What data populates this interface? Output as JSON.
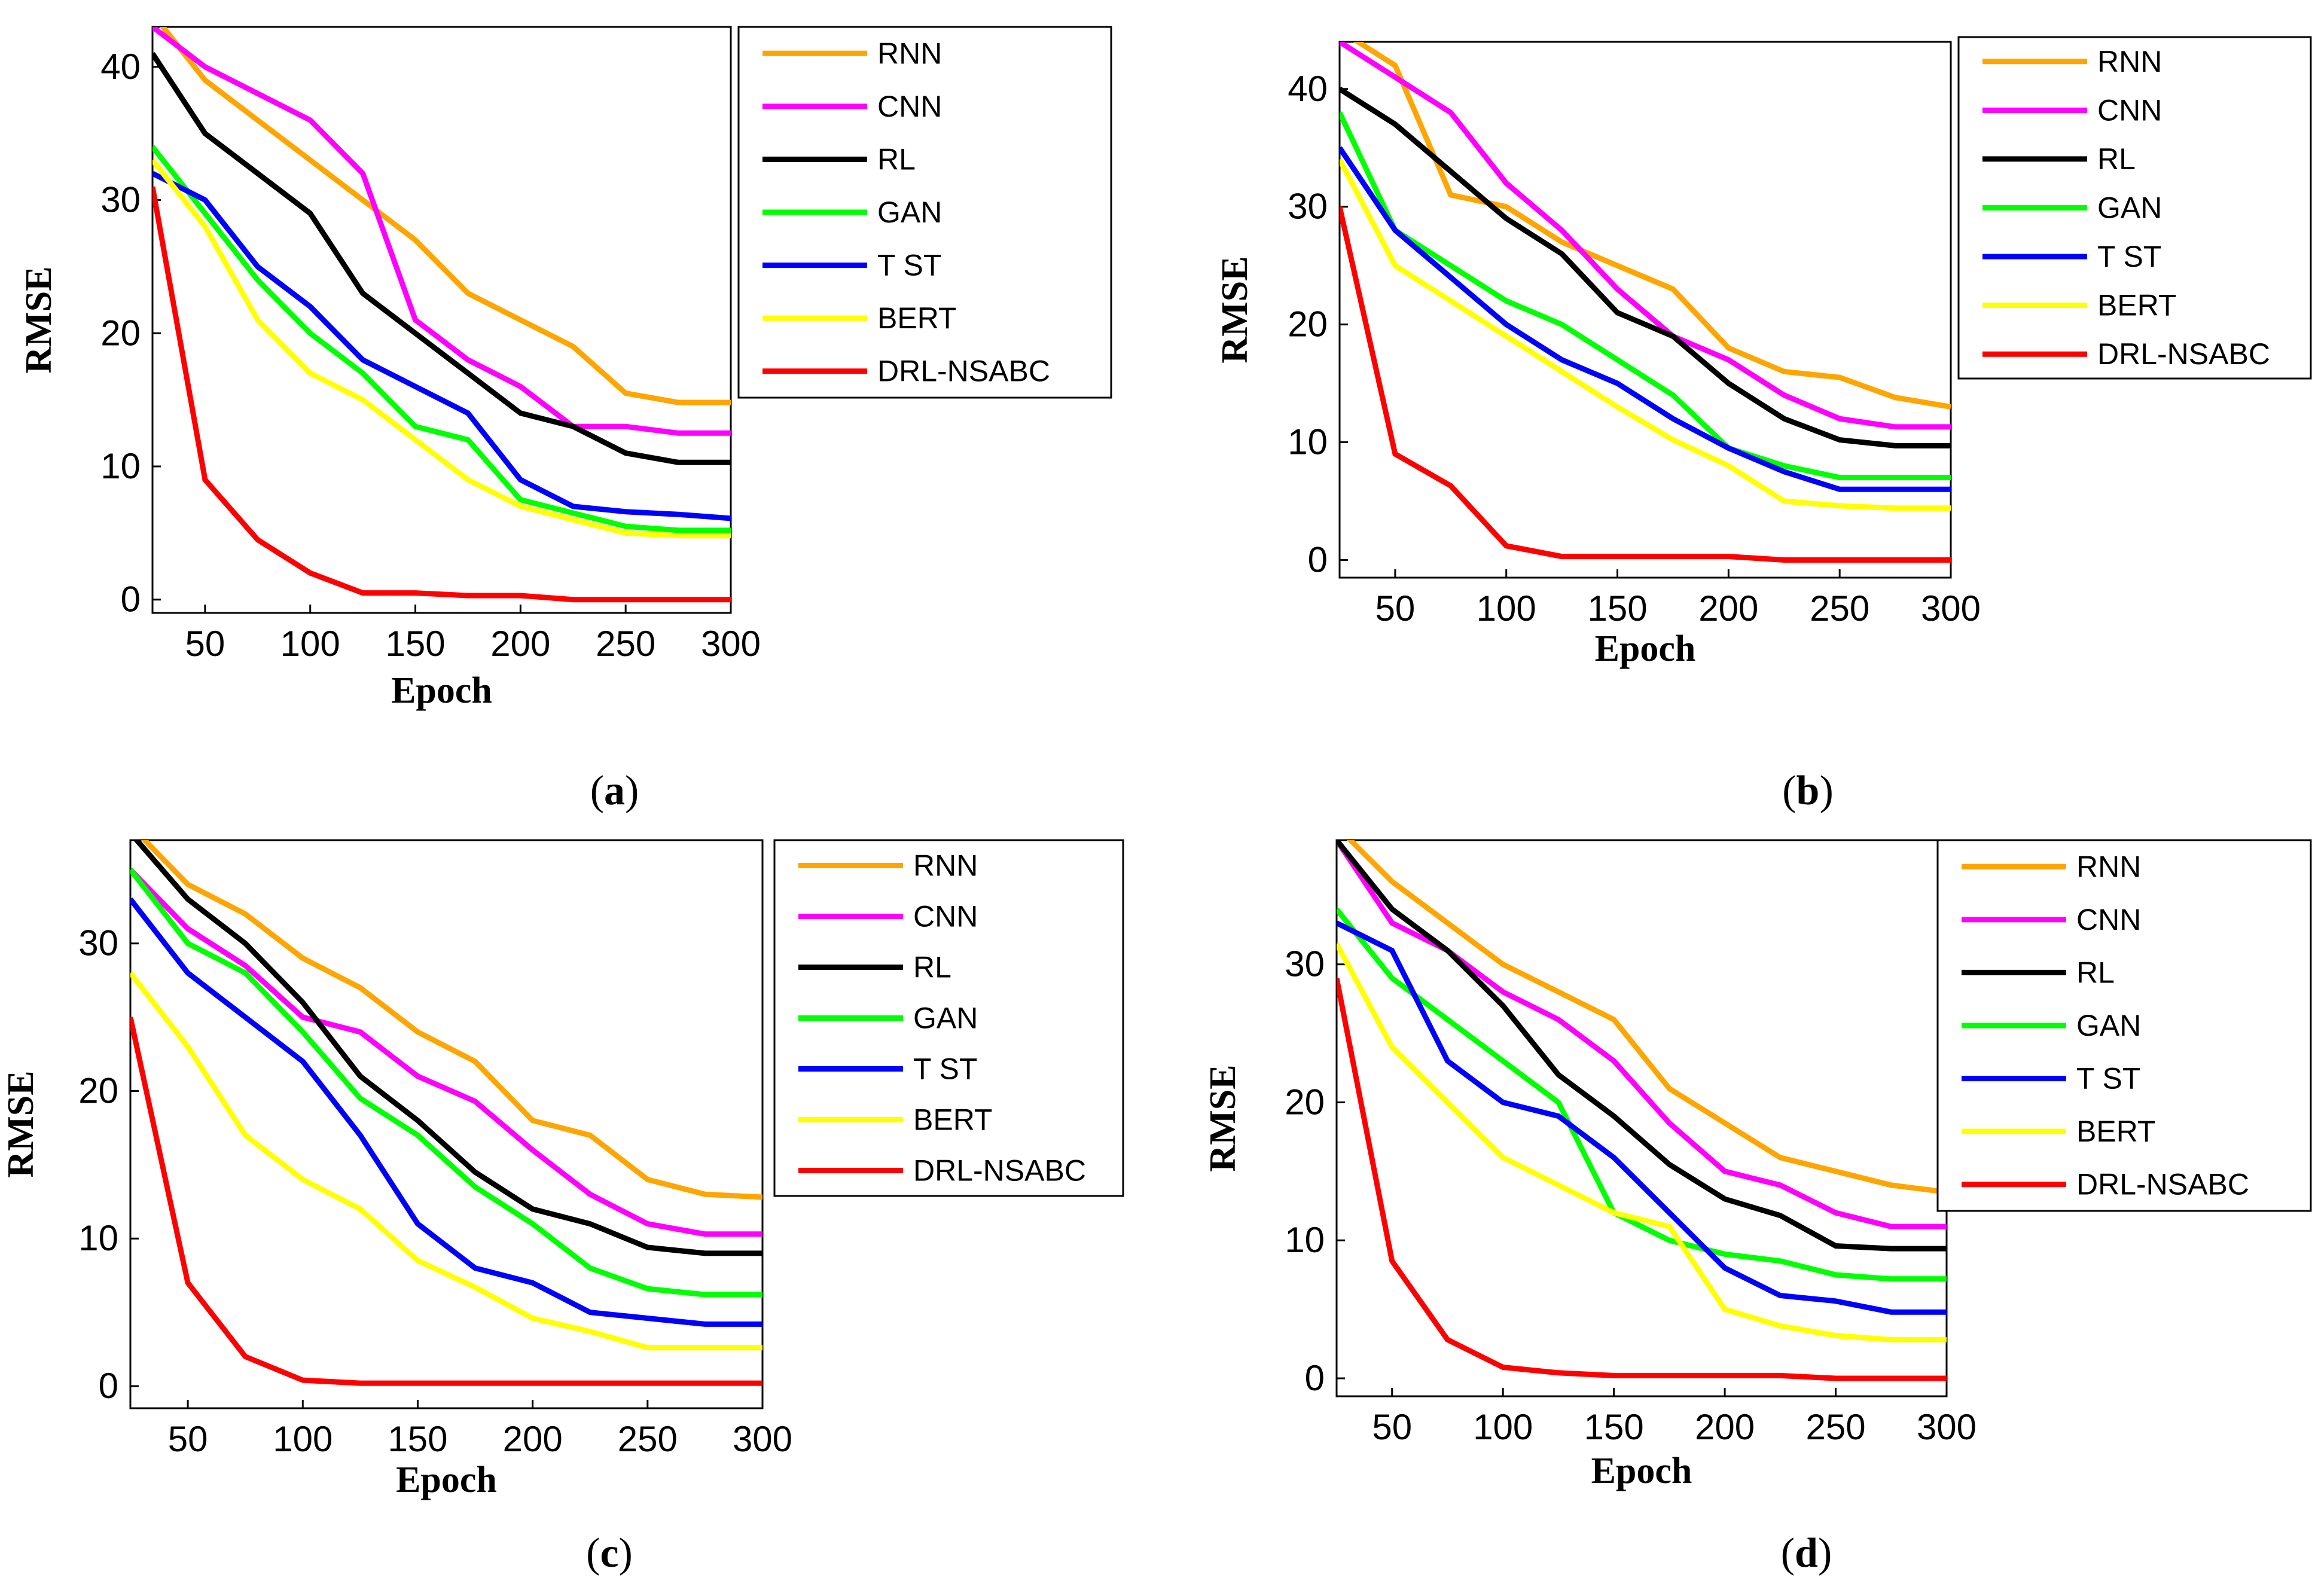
{
  "chart_data": [
    {
      "type": "line",
      "panel": "a",
      "caption": "a",
      "xlabel": "Epoch",
      "ylabel": "RMSE",
      "xlim": [
        25,
        300
      ],
      "ylim": [
        -1,
        43
      ],
      "xticks": [
        50,
        100,
        150,
        200,
        250,
        300
      ],
      "yticks": [
        0,
        10,
        20,
        30,
        40
      ],
      "x": [
        25,
        50,
        75,
        100,
        125,
        150,
        175,
        200,
        225,
        250,
        275,
        300
      ],
      "series": [
        {
          "name": "RNN",
          "color": "#FFA500",
          "values": [
            44,
            39,
            36,
            33,
            30,
            27,
            23,
            21,
            19,
            15.5,
            14.8,
            14.8
          ]
        },
        {
          "name": "CNN",
          "color": "#FF00FF",
          "values": [
            43,
            40,
            38,
            36,
            32,
            21,
            18,
            16,
            13,
            13,
            12.5,
            12.5
          ]
        },
        {
          "name": "RL",
          "color": "#000000",
          "values": [
            41,
            35,
            32,
            29,
            23,
            20,
            17,
            14,
            13,
            11,
            10.3,
            10.3
          ]
        },
        {
          "name": "GAN",
          "color": "#00FF00",
          "values": [
            34,
            29,
            24,
            20,
            17,
            13,
            12,
            7.5,
            6.5,
            5.5,
            5.2,
            5.2
          ]
        },
        {
          "name": "T ST",
          "color": "#0000FF",
          "values": [
            32,
            30,
            25,
            22,
            18,
            16,
            14,
            9,
            7,
            6.6,
            6.4,
            6.1
          ]
        },
        {
          "name": "BERT",
          "color": "#FFFF00",
          "values": [
            33,
            28,
            21,
            17,
            15,
            12,
            9,
            7,
            6,
            5,
            4.8,
            4.8
          ]
        },
        {
          "name": "DRL-NSABC",
          "color": "#FF0000",
          "values": [
            31,
            9,
            4.5,
            2,
            0.5,
            0.5,
            0.3,
            0.3,
            0,
            0,
            0,
            0
          ]
        }
      ]
    },
    {
      "type": "line",
      "panel": "b",
      "caption": "b",
      "xlabel": "Epoch",
      "ylabel": "RMSE",
      "xlim": [
        25,
        300
      ],
      "ylim": [
        -1.5,
        44
      ],
      "xticks": [
        50,
        100,
        150,
        200,
        250,
        300
      ],
      "yticks": [
        0,
        10,
        20,
        30,
        40
      ],
      "x": [
        25,
        50,
        75,
        100,
        125,
        150,
        175,
        200,
        225,
        250,
        275,
        300
      ],
      "series": [
        {
          "name": "RNN",
          "color": "#FFA500",
          "values": [
            45,
            42,
            31,
            30,
            27,
            25,
            23,
            18,
            16,
            15.5,
            13.8,
            13
          ]
        },
        {
          "name": "CNN",
          "color": "#FF00FF",
          "values": [
            44,
            41,
            38,
            32,
            28,
            23,
            19,
            17,
            14,
            12,
            11.3,
            11.3
          ]
        },
        {
          "name": "RL",
          "color": "#000000",
          "values": [
            40,
            37,
            33,
            29,
            26,
            21,
            19,
            15,
            12,
            10.2,
            9.7,
            9.7
          ]
        },
        {
          "name": "GAN",
          "color": "#00FF00",
          "values": [
            38,
            28,
            25,
            22,
            20,
            17,
            14,
            9.5,
            8,
            7,
            7,
            7
          ]
        },
        {
          "name": "T ST",
          "color": "#0000FF",
          "values": [
            35,
            28,
            24,
            20,
            17,
            15,
            12,
            9.5,
            7.5,
            6,
            6,
            6
          ]
        },
        {
          "name": "BERT",
          "color": "#FFFF00",
          "values": [
            34,
            25,
            22,
            19,
            16,
            13,
            10.2,
            8,
            5,
            4.6,
            4.4,
            4.4
          ]
        },
        {
          "name": "DRL-NSABC",
          "color": "#FF0000",
          "values": [
            30,
            9,
            6.3,
            1.2,
            0.3,
            0.3,
            0.3,
            0.3,
            0,
            0,
            0,
            0
          ]
        }
      ]
    },
    {
      "type": "line",
      "panel": "c",
      "caption": "c",
      "xlabel": "Epoch",
      "ylabel": "RMSE",
      "xlim": [
        25,
        300
      ],
      "ylim": [
        -1.5,
        37
      ],
      "xticks": [
        50,
        100,
        150,
        200,
        250,
        300
      ],
      "yticks": [
        0,
        10,
        20,
        30
      ],
      "x": [
        25,
        50,
        75,
        100,
        125,
        150,
        175,
        200,
        225,
        250,
        275,
        300
      ],
      "series": [
        {
          "name": "RNN",
          "color": "#FFA500",
          "values": [
            38,
            34,
            32,
            29,
            27,
            24,
            22,
            18,
            17,
            14,
            13,
            12.8
          ]
        },
        {
          "name": "CNN",
          "color": "#FF00FF",
          "values": [
            35,
            31,
            28.5,
            25,
            24,
            21,
            19.3,
            16,
            13,
            11,
            10.3,
            10.3
          ]
        },
        {
          "name": "RL",
          "color": "#000000",
          "values": [
            37.5,
            33,
            30,
            26,
            21,
            18,
            14.5,
            12,
            11,
            9.4,
            9,
            9
          ]
        },
        {
          "name": "GAN",
          "color": "#00FF00",
          "values": [
            35,
            30,
            28,
            24,
            19.5,
            17,
            13.5,
            11,
            8,
            6.6,
            6.2,
            6.2
          ]
        },
        {
          "name": "T ST",
          "color": "#0000FF",
          "values": [
            33,
            28,
            25,
            22,
            17,
            11,
            8,
            7,
            5,
            4.6,
            4.2,
            4.2
          ]
        },
        {
          "name": "BERT",
          "color": "#FFFF00",
          "values": [
            28,
            23,
            17,
            14,
            12,
            8.5,
            6.7,
            4.6,
            3.7,
            2.6,
            2.6,
            2.6
          ]
        },
        {
          "name": "DRL-NSABC",
          "color": "#FF0000",
          "values": [
            25,
            7,
            2,
            0.4,
            0.2,
            0.2,
            0.2,
            0.2,
            0.2,
            0.2,
            0.2,
            0.2
          ]
        }
      ]
    },
    {
      "type": "line",
      "panel": "d",
      "caption": "d",
      "xlabel": "Epoch",
      "ylabel": "RMSE",
      "xlim": [
        25,
        300
      ],
      "ylim": [
        -1.3,
        39
      ],
      "xticks": [
        50,
        100,
        150,
        200,
        250,
        300
      ],
      "yticks": [
        0,
        10,
        20,
        30
      ],
      "x": [
        25,
        50,
        75,
        100,
        125,
        150,
        175,
        200,
        225,
        250,
        275,
        300
      ],
      "series": [
        {
          "name": "RNN",
          "color": "#FFA500",
          "values": [
            40,
            36,
            33,
            30,
            28,
            26,
            21,
            18.5,
            16,
            15,
            14,
            13.5
          ]
        },
        {
          "name": "CNN",
          "color": "#FF00FF",
          "values": [
            39,
            33,
            31,
            28,
            26,
            23,
            18.5,
            15,
            14,
            12,
            11,
            11
          ]
        },
        {
          "name": "RL",
          "color": "#000000",
          "values": [
            39,
            34,
            31,
            27,
            22,
            19,
            15.5,
            13,
            11.8,
            9.6,
            9.4,
            9.4
          ]
        },
        {
          "name": "GAN",
          "color": "#00FF00",
          "values": [
            34,
            29,
            26,
            23,
            20,
            12,
            10,
            9,
            8.5,
            7.5,
            7.2,
            7.2
          ]
        },
        {
          "name": "T ST",
          "color": "#0000FF",
          "values": [
            33,
            31,
            23,
            20,
            19,
            16,
            12,
            8,
            6,
            5.6,
            4.8,
            4.8
          ]
        },
        {
          "name": "BERT",
          "color": "#FFFF00",
          "values": [
            31.5,
            24,
            20,
            16,
            14,
            12,
            11,
            5,
            3.8,
            3.1,
            2.8,
            2.8
          ]
        },
        {
          "name": "DRL-NSABC",
          "color": "#FF0000",
          "values": [
            29,
            8.5,
            2.8,
            0.8,
            0.4,
            0.2,
            0.2,
            0.2,
            0.2,
            0,
            0,
            0
          ]
        }
      ]
    }
  ]
}
